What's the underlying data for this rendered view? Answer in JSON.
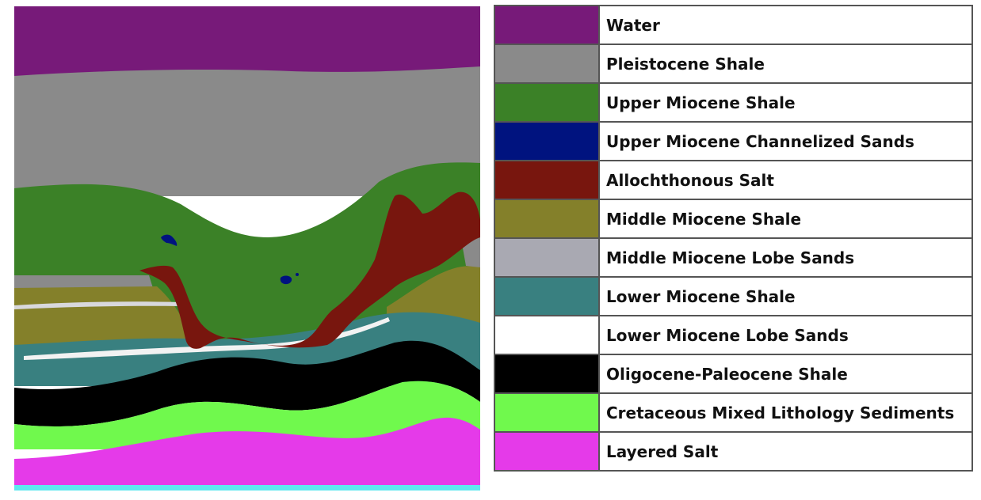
{
  "legend": [
    {
      "label": "Water",
      "color": "#771a79"
    },
    {
      "label": "Pleistocene Shale",
      "color": "#8a8a8a"
    },
    {
      "label": "Upper Miocene Shale",
      "color": "#3b8127"
    },
    {
      "label": "Upper Miocene Channelized Sands",
      "color": "#00137f"
    },
    {
      "label": "Allochthonous Salt",
      "color": "#78160e"
    },
    {
      "label": "Middle Miocene Shale",
      "color": "#84802a"
    },
    {
      "label": "Middle Miocene Lobe Sands",
      "color": "#a9a9b2"
    },
    {
      "label": "Lower Miocene Shale",
      "color": "#398080"
    },
    {
      "label": "Lower Miocene Lobe Sands",
      "color": "#ffffff"
    },
    {
      "label": "Oligocene-Paleocene Shale",
      "color": "#000000"
    },
    {
      "label": "Cretaceous Mixed Lithology Sediments",
      "color": "#70f94d"
    },
    {
      "label": "Layered Salt",
      "color": "#e53ae9"
    }
  ]
}
